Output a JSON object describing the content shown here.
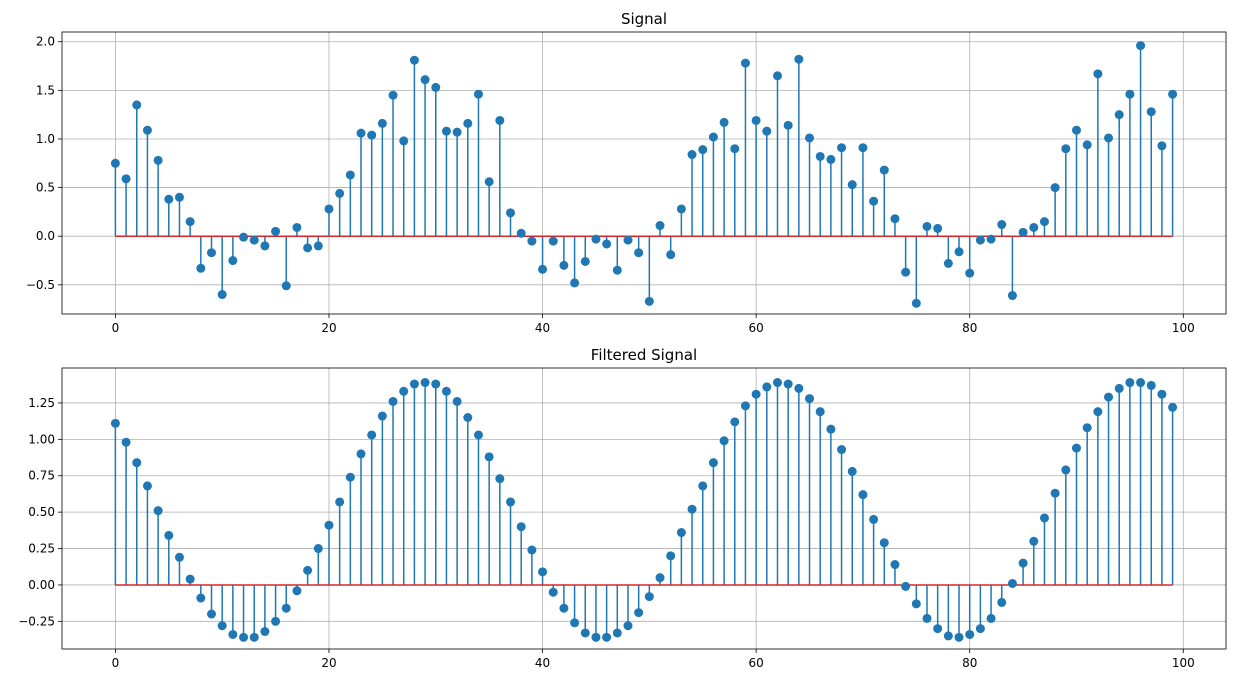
{
  "chart_data": [
    {
      "type": "stem",
      "title": "Signal",
      "xlabel": "",
      "ylabel": "",
      "xlim": [
        -5,
        104
      ],
      "ylim": [
        -0.8,
        2.1
      ],
      "xticks": [
        0,
        20,
        40,
        60,
        80,
        100
      ],
      "yticks": [
        -0.5,
        0.0,
        0.5,
        1.0,
        1.5,
        2.0
      ],
      "xtick_labels": [
        "0",
        "20",
        "40",
        "60",
        "80",
        "100"
      ],
      "ytick_labels": [
        "−0.5",
        "0.0",
        "0.5",
        "1.0",
        "1.5",
        "2.0"
      ],
      "grid": true,
      "baseline": 0,
      "x": [
        0,
        1,
        2,
        3,
        4,
        5,
        6,
        7,
        8,
        9,
        10,
        11,
        12,
        13,
        14,
        15,
        16,
        17,
        18,
        19,
        20,
        21,
        22,
        23,
        24,
        25,
        26,
        27,
        28,
        29,
        30,
        31,
        32,
        33,
        34,
        35,
        36,
        37,
        38,
        39,
        40,
        41,
        42,
        43,
        44,
        45,
        46,
        47,
        48,
        49,
        50,
        51,
        52,
        53,
        54,
        55,
        56,
        57,
        58,
        59,
        60,
        61,
        62,
        63,
        64,
        65,
        66,
        67,
        68,
        69,
        70,
        71,
        72,
        73,
        74,
        75,
        76,
        77,
        78,
        79,
        80,
        81,
        82,
        83,
        84,
        85,
        86,
        87,
        88,
        89,
        90,
        91,
        92,
        93,
        94,
        95,
        96,
        97,
        98,
        99
      ],
      "values": [
        0.75,
        0.59,
        1.35,
        1.09,
        0.78,
        0.38,
        0.4,
        0.15,
        -0.33,
        -0.17,
        -0.6,
        -0.25,
        -0.01,
        -0.04,
        -0.1,
        0.05,
        -0.51,
        0.09,
        -0.12,
        -0.1,
        0.28,
        0.44,
        0.63,
        1.06,
        1.04,
        1.16,
        1.45,
        0.98,
        1.81,
        1.61,
        1.53,
        1.08,
        1.07,
        1.16,
        1.46,
        0.56,
        1.19,
        0.24,
        0.03,
        -0.05,
        -0.34,
        -0.05,
        -0.3,
        -0.48,
        -0.26,
        -0.03,
        -0.08,
        -0.35,
        -0.04,
        -0.17,
        -0.67,
        0.11,
        -0.19,
        0.28,
        0.84,
        0.89,
        1.02,
        1.17,
        0.9,
        1.78,
        1.19,
        1.08,
        1.65,
        1.14,
        1.82,
        1.01,
        0.82,
        0.79,
        0.91,
        0.53,
        0.91,
        0.36,
        0.68,
        0.18,
        -0.37,
        -0.69,
        0.1,
        0.08,
        -0.28,
        -0.16,
        -0.38,
        -0.04,
        -0.03,
        0.12,
        -0.61,
        0.04,
        0.09,
        0.15,
        0.5,
        0.9,
        1.09,
        0.94,
        1.67,
        1.01,
        1.25,
        1.46,
        1.96,
        1.28,
        0.93,
        1.46
      ]
    },
    {
      "type": "stem",
      "title": "Filtered Signal",
      "xlabel": "",
      "ylabel": "",
      "xlim": [
        -5,
        104
      ],
      "ylim": [
        -0.44,
        1.49
      ],
      "xticks": [
        0,
        20,
        40,
        60,
        80,
        100
      ],
      "yticks": [
        -0.25,
        0.0,
        0.25,
        0.5,
        0.75,
        1.0,
        1.25
      ],
      "xtick_labels": [
        "0",
        "20",
        "40",
        "60",
        "80",
        "100"
      ],
      "ytick_labels": [
        "−0.25",
        "0.00",
        "0.25",
        "0.50",
        "0.75",
        "1.00",
        "1.25"
      ],
      "grid": true,
      "baseline": 0,
      "x": [
        0,
        1,
        2,
        3,
        4,
        5,
        6,
        7,
        8,
        9,
        10,
        11,
        12,
        13,
        14,
        15,
        16,
        17,
        18,
        19,
        20,
        21,
        22,
        23,
        24,
        25,
        26,
        27,
        28,
        29,
        30,
        31,
        32,
        33,
        34,
        35,
        36,
        37,
        38,
        39,
        40,
        41,
        42,
        43,
        44,
        45,
        46,
        47,
        48,
        49,
        50,
        51,
        52,
        53,
        54,
        55,
        56,
        57,
        58,
        59,
        60,
        61,
        62,
        63,
        64,
        65,
        66,
        67,
        68,
        69,
        70,
        71,
        72,
        73,
        74,
        75,
        76,
        77,
        78,
        79,
        80,
        81,
        82,
        83,
        84,
        85,
        86,
        87,
        88,
        89,
        90,
        91,
        92,
        93,
        94,
        95,
        96,
        97,
        98,
        99
      ],
      "values": [
        1.11,
        0.98,
        0.84,
        0.68,
        0.51,
        0.34,
        0.19,
        0.04,
        -0.09,
        -0.2,
        -0.28,
        -0.34,
        -0.36,
        -0.36,
        -0.32,
        -0.25,
        -0.16,
        -0.04,
        0.1,
        0.25,
        0.41,
        0.57,
        0.74,
        0.9,
        1.03,
        1.16,
        1.26,
        1.33,
        1.38,
        1.39,
        1.38,
        1.33,
        1.26,
        1.15,
        1.03,
        0.88,
        0.73,
        0.57,
        0.4,
        0.24,
        0.09,
        -0.05,
        -0.16,
        -0.26,
        -0.33,
        -0.36,
        -0.36,
        -0.33,
        -0.28,
        -0.19,
        -0.08,
        0.05,
        0.2,
        0.36,
        0.52,
        0.68,
        0.84,
        0.99,
        1.12,
        1.23,
        1.31,
        1.36,
        1.39,
        1.38,
        1.35,
        1.28,
        1.19,
        1.07,
        0.93,
        0.78,
        0.62,
        0.45,
        0.29,
        0.14,
        -0.01,
        -0.13,
        -0.23,
        -0.3,
        -0.35,
        -0.36,
        -0.34,
        -0.3,
        -0.23,
        -0.12,
        0.01,
        0.15,
        0.3,
        0.46,
        0.63,
        0.79,
        0.94,
        1.08,
        1.19,
        1.29,
        1.35,
        1.39,
        1.39,
        1.37,
        1.31,
        1.22
      ]
    }
  ],
  "colors": {
    "stem": "#1f77b4",
    "marker": "#1f77b4",
    "baseline": "#d62728",
    "grid": "#b0b0b0",
    "axes": "#000000"
  }
}
